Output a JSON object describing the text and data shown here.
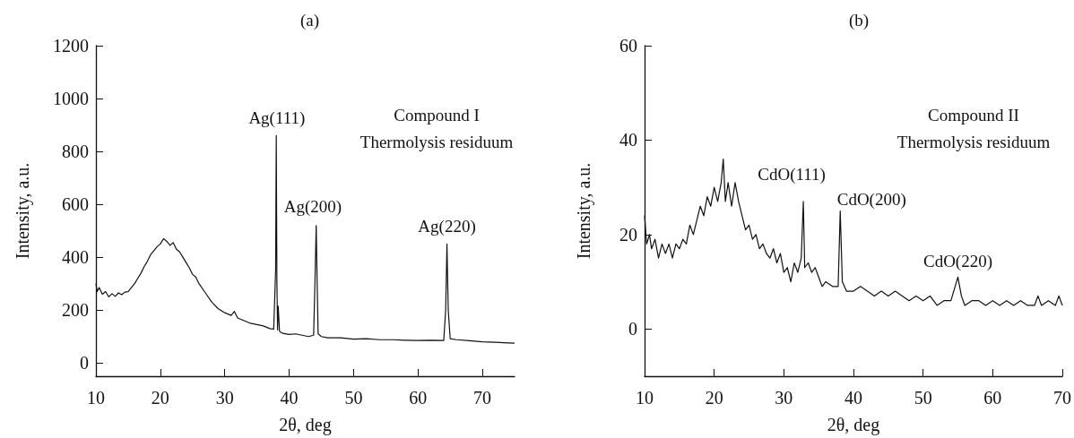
{
  "chart_data": [
    {
      "type": "line",
      "title": "(a)",
      "xlabel": "2θ, deg",
      "ylabel": "Intensity, a.u.",
      "xlim": [
        10,
        75
      ],
      "ylim": [
        -50,
        1200
      ],
      "xticks": [
        10,
        20,
        30,
        40,
        50,
        60,
        70
      ],
      "yticks": [
        0,
        200,
        400,
        600,
        800,
        1000,
        1200
      ],
      "grid": false,
      "marker": "none",
      "line_style": "solid",
      "annotations": [
        "Compound I",
        "Thermolysis residuum",
        {
          "text": "Ag(111)",
          "x": 38.1,
          "y": 860
        },
        {
          "text": "Ag(200)",
          "x": 44.2,
          "y": 520
        },
        {
          "text": "Ag(220)",
          "x": 64.5,
          "y": 450
        }
      ],
      "series": [
        {
          "color": "#111111",
          "x": [
            10,
            10.2,
            10.5,
            11,
            11.5,
            12,
            12.5,
            13,
            13.5,
            14,
            14.5,
            15,
            15.5,
            16,
            16.5,
            17,
            17.5,
            18,
            18.5,
            19,
            19.5,
            20,
            20.5,
            21,
            21.5,
            22,
            22.5,
            23,
            23.5,
            24,
            24.5,
            25,
            25.5,
            26,
            27,
            28,
            29,
            30,
            31,
            31.5,
            32,
            33,
            34,
            35,
            36,
            37,
            37.6,
            37.9,
            38.0,
            38.1,
            38.2,
            38.3,
            38.5,
            38.6,
            39,
            40,
            41,
            42,
            43,
            43.8,
            44.0,
            44.2,
            44.35,
            44.5,
            45,
            46,
            48,
            50,
            52,
            54,
            56,
            58,
            60,
            62,
            64,
            64.3,
            64.5,
            64.7,
            65,
            66,
            68,
            70,
            72,
            74,
            75
          ],
          "values": [
            300,
            270,
            285,
            260,
            270,
            250,
            262,
            252,
            265,
            258,
            268,
            270,
            285,
            300,
            320,
            340,
            365,
            385,
            410,
            425,
            440,
            450,
            470,
            460,
            445,
            455,
            430,
            420,
            400,
            380,
            360,
            335,
            325,
            300,
            265,
            230,
            205,
            190,
            180,
            195,
            170,
            160,
            150,
            145,
            140,
            130,
            128,
            350,
            860,
            300,
            125,
            215,
            120,
            118,
            112,
            108,
            110,
            105,
            100,
            105,
            300,
            520,
            300,
            110,
            100,
            95,
            95,
            90,
            92,
            88,
            88,
            86,
            85,
            86,
            85,
            200,
            450,
            200,
            92,
            88,
            84,
            80,
            78,
            76,
            75
          ]
        }
      ]
    },
    {
      "type": "line",
      "title": "(b)",
      "xlabel": "2θ, deg",
      "ylabel": "Intensity, a.u.",
      "xlim": [
        10,
        70
      ],
      "ylim": [
        -10,
        60
      ],
      "xticks": [
        10,
        20,
        30,
        40,
        50,
        60,
        70
      ],
      "yticks": [
        0,
        20,
        40,
        60
      ],
      "grid": false,
      "marker": "none",
      "line_style": "solid",
      "annotations": [
        "Compound II",
        "Thermolysis residuum",
        {
          "text": "CdO(111)",
          "x": 32.8,
          "y": 27
        },
        {
          "text": "CdO(200)",
          "x": 38.1,
          "y": 25
        },
        {
          "text": "CdO(220)",
          "x": 55,
          "y": 11
        }
      ],
      "series": [
        {
          "color": "#111111",
          "x": [
            10,
            10.3,
            10.7,
            11,
            11.5,
            12,
            12.5,
            13,
            13.5,
            14,
            14.5,
            15,
            15.5,
            16,
            16.5,
            17,
            17.5,
            18,
            18.5,
            19,
            19.5,
            20,
            20.5,
            21,
            21.3,
            21.6,
            22,
            22.5,
            23,
            23.5,
            24,
            24.5,
            25,
            25.5,
            26,
            26.5,
            27,
            27.5,
            28,
            28.5,
            29,
            29.5,
            30,
            30.5,
            31,
            31.5,
            32,
            32.5,
            32.8,
            33,
            33.5,
            34,
            34.5,
            35,
            35.5,
            36,
            37,
            37.8,
            38.1,
            38.4,
            39,
            40,
            41,
            42,
            43,
            44,
            45,
            46,
            47,
            48,
            49,
            50,
            51,
            52,
            53,
            54,
            55,
            55.5,
            56,
            57,
            58,
            59,
            60,
            61,
            62,
            63,
            64,
            65,
            66,
            66.5,
            67,
            68,
            69,
            69.5,
            70
          ],
          "values": [
            24,
            18,
            20,
            17,
            19,
            15,
            18,
            16,
            18,
            15,
            18,
            17,
            19,
            18,
            22,
            20,
            23,
            26,
            24,
            28,
            26,
            30,
            27,
            31,
            36,
            27,
            31,
            26,
            31,
            27,
            24,
            21,
            22,
            19,
            20,
            17,
            18,
            16,
            15,
            17,
            14,
            16,
            12,
            13,
            10,
            14,
            12,
            15,
            27,
            13,
            14,
            12,
            13,
            11,
            9,
            10,
            9,
            9,
            25,
            10,
            8,
            8,
            9,
            8,
            7,
            8,
            7,
            8,
            7,
            6,
            7,
            6,
            7,
            5,
            6,
            6,
            11,
            7,
            5,
            6,
            6,
            5,
            6,
            5,
            6,
            5,
            6,
            5,
            5,
            7,
            5,
            6,
            5,
            7,
            5
          ]
        }
      ]
    }
  ]
}
